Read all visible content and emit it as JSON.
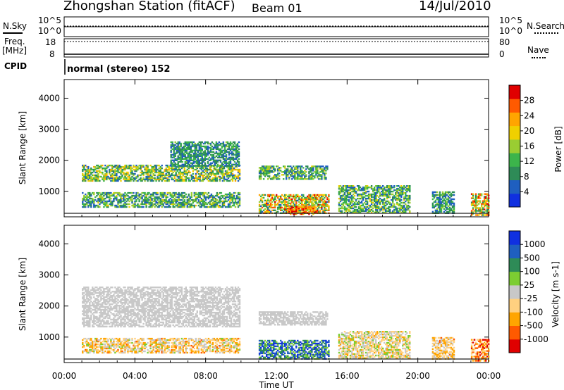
{
  "header": {
    "station": "Zhongshan Station (fitACF)",
    "beam": "Beam 01",
    "date": "14/Jul/2010"
  },
  "strip_labels": {
    "nsky": "N.Sky",
    "nsearch": "N.Search",
    "freq_line1": "Freq.",
    "freq_line2": "[MHz]",
    "nave": "Nave",
    "cpid": "CPID",
    "cpid_value": "normal (stereo) 152"
  },
  "strip_ticks": {
    "nsky_top": "10^5",
    "nsky_bottom": "10^0",
    "nsearch_top": "10^5",
    "nsearch_bottom": "10^0",
    "freq_top": "18",
    "freq_bottom": "8",
    "nave_top": "80",
    "nave_bottom": "0"
  },
  "colors": {
    "power": [
      "#1030e0",
      "#1f5fc0",
      "#2e8b57",
      "#3cb44b",
      "#9acd32",
      "#f0d000",
      "#ffa500",
      "#ff5a00",
      "#e00000"
    ],
    "velocity": [
      "#e00000",
      "#ff5a00",
      "#ffa500",
      "#ffd080",
      "#c8c8c8",
      "#7ccd32",
      "#2e8b57",
      "#1f5fc0",
      "#1030e0"
    ]
  },
  "chart_data": [
    {
      "type": "heatmap",
      "panel": "power",
      "ylabel": "Slant Range [km]",
      "xlabel": "Time UT",
      "x_ticks": [
        "00:00",
        "04:00",
        "08:00",
        "12:00",
        "16:00",
        "20:00",
        "00:00"
      ],
      "x_range_hours": [
        0,
        24
      ],
      "y_ticks": [
        "1000",
        "2000",
        "3000",
        "4000"
      ],
      "ylim_km": [
        180,
        4600
      ],
      "colorbar": {
        "label": "Power [dB]",
        "ticks": [
          "4",
          "8",
          "12",
          "16",
          "20",
          "24",
          "28"
        ],
        "range": [
          0,
          31
        ]
      },
      "regions": [
        {
          "t": [
            1.0,
            9.9
          ],
          "r": [
            1320,
            1820
          ],
          "v": [
            4,
            22
          ]
        },
        {
          "t": [
            6.0,
            9.9
          ],
          "r": [
            1800,
            2600
          ],
          "v": [
            4,
            14
          ]
        },
        {
          "t": [
            1.0,
            9.9
          ],
          "r": [
            480,
            960
          ],
          "v": [
            4,
            18
          ]
        },
        {
          "t": [
            11.0,
            14.9
          ],
          "r": [
            1380,
            1800
          ],
          "v": [
            4,
            18
          ]
        },
        {
          "t": [
            11.0,
            15.0
          ],
          "r": [
            280,
            900
          ],
          "v": [
            6,
            29
          ]
        },
        {
          "t": [
            12.6,
            14.2
          ],
          "r": [
            250,
            520
          ],
          "v": [
            20,
            30
          ]
        },
        {
          "t": [
            15.5,
            19.5
          ],
          "r": [
            300,
            1200
          ],
          "v": [
            4,
            18
          ]
        },
        {
          "t": [
            20.8,
            22.0
          ],
          "r": [
            280,
            1000
          ],
          "v": [
            4,
            16
          ]
        },
        {
          "t": [
            23.0,
            24.0
          ],
          "r": [
            220,
            900
          ],
          "v": [
            8,
            30
          ]
        }
      ]
    },
    {
      "type": "heatmap",
      "panel": "velocity",
      "ylabel": "Slant Range [km]",
      "xlabel": "Time UT",
      "x_ticks": [
        "00:00",
        "04:00",
        "08:00",
        "12:00",
        "16:00",
        "20:00",
        "00:00"
      ],
      "x_range_hours": [
        0,
        24
      ],
      "y_ticks": [
        "1000",
        "2000",
        "3000",
        "4000"
      ],
      "ylim_km": [
        180,
        4600
      ],
      "colorbar": {
        "label": "Velocity [m s-1]",
        "ticks": [
          "-1000",
          "-500",
          "-100",
          "-25",
          "25",
          "100",
          "500",
          "1000"
        ],
        "range": [
          -1200,
          1200
        ]
      },
      "regions": [
        {
          "t": [
            1.0,
            9.9
          ],
          "r": [
            1320,
            2600
          ],
          "v": [
            -20,
            20
          ]
        },
        {
          "t": [
            1.0,
            9.9
          ],
          "r": [
            480,
            960
          ],
          "v": [
            -700,
            200
          ]
        },
        {
          "t": [
            11.0,
            14.9
          ],
          "r": [
            1380,
            1800
          ],
          "v": [
            -20,
            20
          ]
        },
        {
          "t": [
            11.0,
            15.0
          ],
          "r": [
            280,
            900
          ],
          "v": [
            200,
            1100
          ]
        },
        {
          "t": [
            15.5,
            19.5
          ],
          "r": [
            300,
            1200
          ],
          "v": [
            -500,
            300
          ]
        },
        {
          "t": [
            20.8,
            22.0
          ],
          "r": [
            280,
            1000
          ],
          "v": [
            -700,
            100
          ]
        },
        {
          "t": [
            23.0,
            24.0
          ],
          "r": [
            220,
            900
          ],
          "v": [
            -1100,
            -100
          ]
        }
      ]
    }
  ]
}
